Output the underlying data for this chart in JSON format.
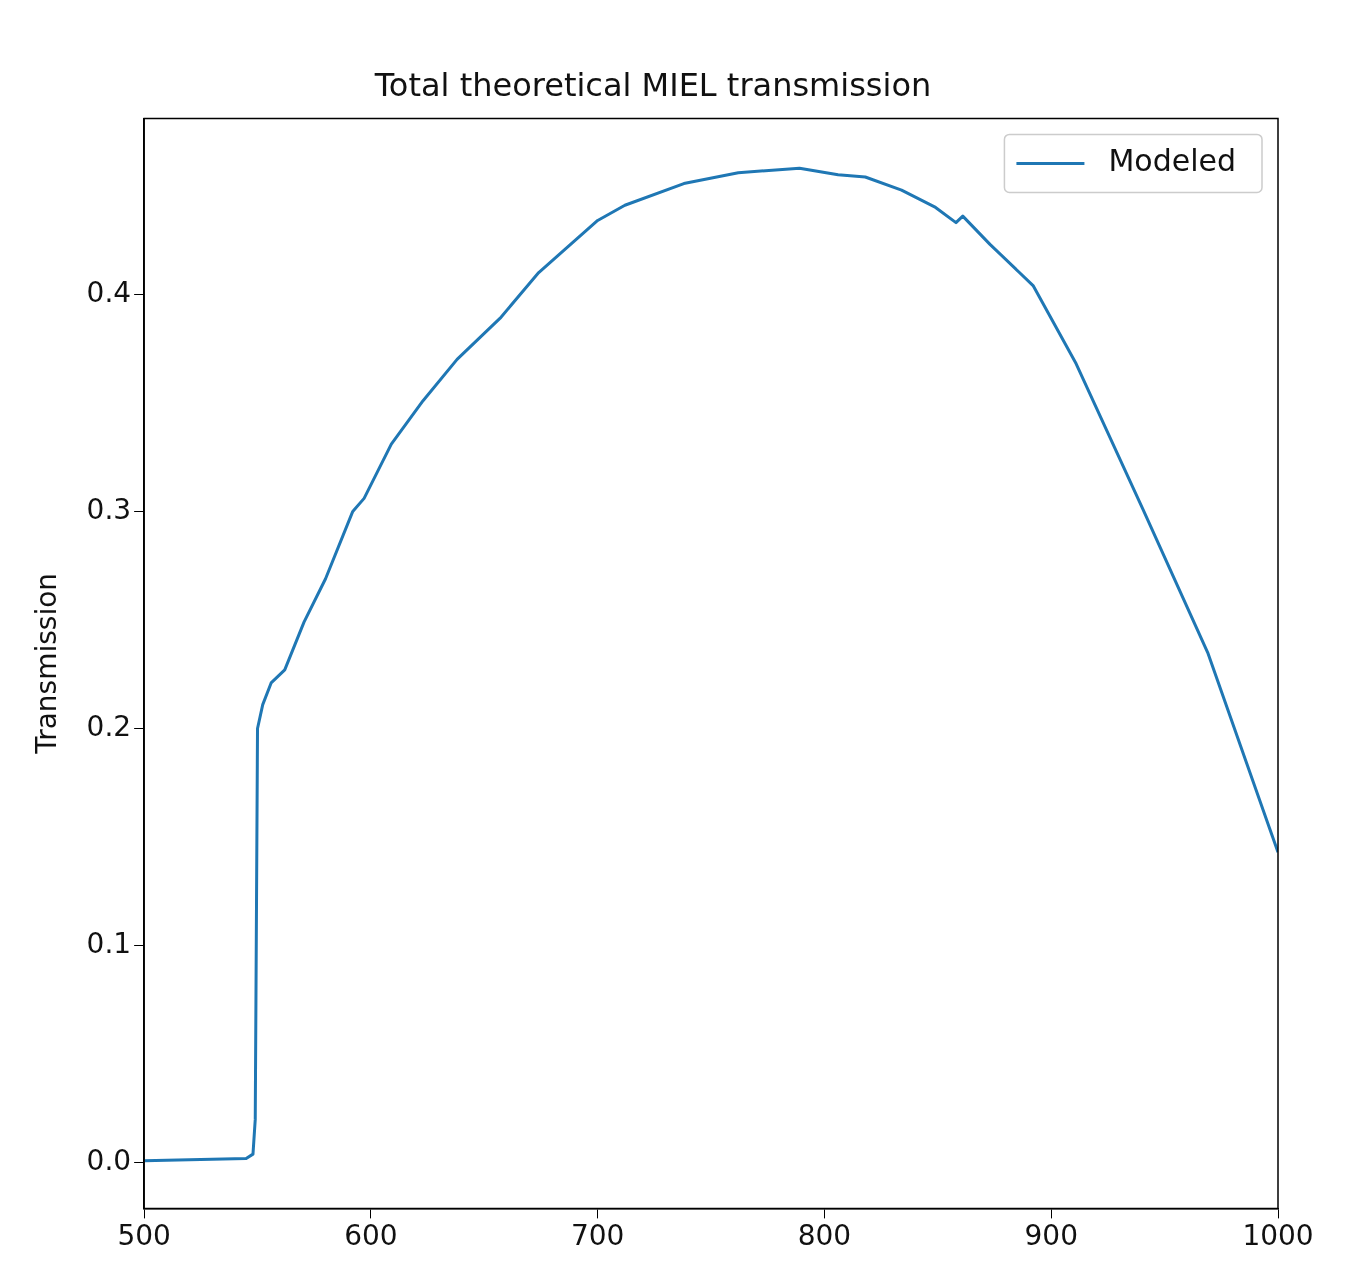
{
  "chart_data": {
    "type": "line",
    "title": "Total theoretical MIEL transmission",
    "ylabel": "Transmission",
    "x": [
      500,
      545,
      548,
      549,
      550,
      552.3,
      556,
      562,
      570.5,
      580,
      592,
      597,
      609,
      623,
      638,
      657,
      674,
      700,
      712,
      738,
      762,
      789,
      806,
      818,
      834,
      849,
      858,
      861,
      873,
      892,
      911,
      940,
      969,
      1000
    ],
    "series": [
      {
        "name": "Modeled",
        "color": "#1f77b4",
        "values": [
          0.001,
          0.002,
          0.004,
          0.02,
          0.2,
          0.211,
          0.221,
          0.227,
          0.249,
          0.269,
          0.3,
          0.306,
          0.331,
          0.351,
          0.37,
          0.389,
          0.41,
          0.434,
          0.441,
          0.451,
          0.456,
          0.458,
          0.455,
          0.454,
          0.448,
          0.44,
          0.433,
          0.436,
          0.423,
          0.404,
          0.368,
          0.302,
          0.235,
          0.143
        ]
      }
    ],
    "xlim": [
      500,
      1000
    ],
    "ylim": [
      -0.021,
      0.481
    ],
    "xticks": [
      500,
      600,
      700,
      800,
      900,
      1000
    ],
    "yticks": [
      {
        "value": 0,
        "label": "0.0"
      },
      {
        "value": 0.1,
        "label": "0.1"
      },
      {
        "value": 0.2,
        "label": "0.2"
      },
      {
        "value": 0.3,
        "label": "0.3"
      },
      {
        "value": 0.4,
        "label": "0.4"
      }
    ],
    "legend": "top right",
    "grid": false
  }
}
